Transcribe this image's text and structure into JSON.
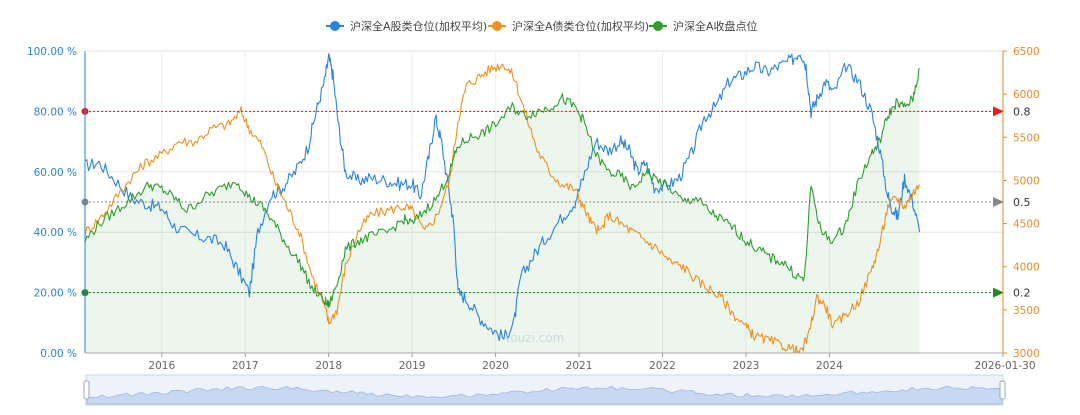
{
  "legend": [
    {
      "label": "沪深全A股类仓位(加权平均)",
      "color": "#2b83e0"
    },
    {
      "label": "沪深全A债类仓位(加权平均)",
      "color": "#f0901e"
    },
    {
      "label": "沪深全A收盘点位",
      "color": "#2e9e2e"
    }
  ],
  "watermark": "touzi.com",
  "chart_data": {
    "type": "line",
    "title": "",
    "xlabel": "",
    "ylabel": "",
    "x_ticks": [
      "2016",
      "2017",
      "2018",
      "2019",
      "2020",
      "2021",
      "2022",
      "2023",
      "2024",
      "2026-01-30"
    ],
    "x_range": [
      "2015-01",
      "2026-01-30"
    ],
    "y_left": {
      "ticks": [
        "0.00 %",
        "20.00 %",
        "40.00 %",
        "60.00 %",
        "80.00 %",
        "100.00 %"
      ],
      "range": [
        0,
        100
      ],
      "color": "#2b83d8"
    },
    "y_right": {
      "ticks": [
        "3000",
        "3500",
        "4000",
        "4500",
        "5000",
        "5500",
        "6000",
        "6500"
      ],
      "range": [
        3000,
        6500
      ],
      "color": "#e98a26"
    },
    "reference_lines": [
      {
        "value": 0.8,
        "label": "0.8",
        "color": "#e02020"
      },
      {
        "value": 0.5,
        "label": "0.5",
        "color": "#888888"
      },
      {
        "value": 0.2,
        "label": "0.2",
        "color": "#1f8a1f"
      }
    ],
    "series": [
      {
        "name": "沪深全A股类仓位(加权平均)",
        "color": "#2b83e0",
        "axis": "left",
        "points": [
          [
            2015.08,
            62
          ],
          [
            2015.25,
            63
          ],
          [
            2015.45,
            57
          ],
          [
            2015.65,
            51
          ],
          [
            2015.85,
            49
          ],
          [
            2016.0,
            48
          ],
          [
            2016.15,
            42
          ],
          [
            2016.35,
            39
          ],
          [
            2016.55,
            38
          ],
          [
            2016.75,
            36
          ],
          [
            2016.9,
            28
          ],
          [
            2017.05,
            20
          ],
          [
            2017.15,
            40
          ],
          [
            2017.3,
            52
          ],
          [
            2017.45,
            55
          ],
          [
            2017.6,
            60
          ],
          [
            2017.75,
            68
          ],
          [
            2017.85,
            80
          ],
          [
            2017.95,
            90
          ],
          [
            2018.0,
            98
          ],
          [
            2018.05,
            92
          ],
          [
            2018.12,
            75
          ],
          [
            2018.2,
            60
          ],
          [
            2018.35,
            57
          ],
          [
            2018.5,
            58
          ],
          [
            2018.7,
            57
          ],
          [
            2018.85,
            56
          ],
          [
            2019.0,
            56
          ],
          [
            2019.1,
            52
          ],
          [
            2019.2,
            65
          ],
          [
            2019.28,
            78
          ],
          [
            2019.35,
            70
          ],
          [
            2019.45,
            52
          ],
          [
            2019.5,
            42
          ],
          [
            2019.55,
            20
          ],
          [
            2019.65,
            18
          ],
          [
            2019.8,
            12
          ],
          [
            2019.95,
            8
          ],
          [
            2020.1,
            5
          ],
          [
            2020.22,
            10
          ],
          [
            2020.3,
            25
          ],
          [
            2020.45,
            32
          ],
          [
            2020.6,
            38
          ],
          [
            2020.8,
            45
          ],
          [
            2020.95,
            50
          ],
          [
            2021.05,
            58
          ],
          [
            2021.2,
            70
          ],
          [
            2021.35,
            67
          ],
          [
            2021.5,
            70
          ],
          [
            2021.6,
            67
          ],
          [
            2021.7,
            60
          ],
          [
            2021.8,
            63
          ],
          [
            2021.9,
            55
          ],
          [
            2022.05,
            55
          ],
          [
            2022.2,
            58
          ],
          [
            2022.35,
            66
          ],
          [
            2022.5,
            78
          ],
          [
            2022.65,
            82
          ],
          [
            2022.8,
            90
          ],
          [
            2022.95,
            92
          ],
          [
            2023.1,
            95
          ],
          [
            2023.25,
            93
          ],
          [
            2023.4,
            95
          ],
          [
            2023.55,
            97
          ],
          [
            2023.65,
            100
          ],
          [
            2023.72,
            95
          ],
          [
            2023.78,
            80
          ],
          [
            2023.85,
            84
          ],
          [
            2023.95,
            90
          ],
          [
            2024.05,
            86
          ],
          [
            2024.2,
            95
          ],
          [
            2024.35,
            90
          ],
          [
            2024.5,
            80
          ],
          [
            2024.6,
            68
          ],
          [
            2024.7,
            52
          ],
          [
            2024.75,
            48
          ],
          [
            2024.82,
            45
          ],
          [
            2024.9,
            58
          ],
          [
            2025.0,
            50
          ],
          [
            2025.08,
            40
          ]
        ]
      },
      {
        "name": "沪深全A债类仓位(加权平均)",
        "color": "#f0901e",
        "axis": "right",
        "points": [
          [
            2015.08,
            4400
          ],
          [
            2015.25,
            4550
          ],
          [
            2015.45,
            4800
          ],
          [
            2015.65,
            5050
          ],
          [
            2015.8,
            5200
          ],
          [
            2016.0,
            5300
          ],
          [
            2016.2,
            5450
          ],
          [
            2016.4,
            5450
          ],
          [
            2016.6,
            5600
          ],
          [
            2016.8,
            5650
          ],
          [
            2016.95,
            5800
          ],
          [
            2017.05,
            5600
          ],
          [
            2017.2,
            5400
          ],
          [
            2017.35,
            5000
          ],
          [
            2017.5,
            4700
          ],
          [
            2017.65,
            4400
          ],
          [
            2017.8,
            3900
          ],
          [
            2017.95,
            3550
          ],
          [
            2018.0,
            3350
          ],
          [
            2018.1,
            3500
          ],
          [
            2018.2,
            4000
          ],
          [
            2018.35,
            4400
          ],
          [
            2018.5,
            4600
          ],
          [
            2018.7,
            4650
          ],
          [
            2018.9,
            4700
          ],
          [
            2019.0,
            4650
          ],
          [
            2019.15,
            4400
          ],
          [
            2019.3,
            4600
          ],
          [
            2019.45,
            5000
          ],
          [
            2019.55,
            5700
          ],
          [
            2019.65,
            6100
          ],
          [
            2019.8,
            6200
          ],
          [
            2019.95,
            6300
          ],
          [
            2020.1,
            6350
          ],
          [
            2020.22,
            6200
          ],
          [
            2020.35,
            5800
          ],
          [
            2020.5,
            5350
          ],
          [
            2020.65,
            5100
          ],
          [
            2020.8,
            4950
          ],
          [
            2020.95,
            4900
          ],
          [
            2021.05,
            4700
          ],
          [
            2021.15,
            4500
          ],
          [
            2021.25,
            4400
          ],
          [
            2021.35,
            4600
          ],
          [
            2021.5,
            4500
          ],
          [
            2021.65,
            4400
          ],
          [
            2021.8,
            4300
          ],
          [
            2021.95,
            4200
          ],
          [
            2022.1,
            4050
          ],
          [
            2022.25,
            4000
          ],
          [
            2022.4,
            3850
          ],
          [
            2022.55,
            3750
          ],
          [
            2022.7,
            3650
          ],
          [
            2022.85,
            3450
          ],
          [
            2023.0,
            3300
          ],
          [
            2023.1,
            3200
          ],
          [
            2023.25,
            3150
          ],
          [
            2023.4,
            3100
          ],
          [
            2023.55,
            3050
          ],
          [
            2023.65,
            3000
          ],
          [
            2023.75,
            3200
          ],
          [
            2023.85,
            3650
          ],
          [
            2023.95,
            3550
          ],
          [
            2024.05,
            3300
          ],
          [
            2024.2,
            3450
          ],
          [
            2024.35,
            3600
          ],
          [
            2024.5,
            3950
          ],
          [
            2024.6,
            4250
          ],
          [
            2024.7,
            4700
          ],
          [
            2024.8,
            4800
          ],
          [
            2024.9,
            4700
          ],
          [
            2025.0,
            4850
          ],
          [
            2025.08,
            4950
          ]
        ]
      },
      {
        "name": "沪深全A收盘点位",
        "color": "#2e9e2e",
        "axis": "right",
        "points": [
          [
            2015.08,
            4300
          ],
          [
            2015.25,
            4500
          ],
          [
            2015.45,
            4650
          ],
          [
            2015.65,
            4800
          ],
          [
            2015.85,
            4950
          ],
          [
            2016.0,
            4900
          ],
          [
            2016.15,
            4800
          ],
          [
            2016.3,
            4650
          ],
          [
            2016.5,
            4800
          ],
          [
            2016.7,
            4900
          ],
          [
            2016.9,
            5000
          ],
          [
            2017.05,
            4800
          ],
          [
            2017.2,
            4700
          ],
          [
            2017.35,
            4500
          ],
          [
            2017.5,
            4250
          ],
          [
            2017.65,
            4050
          ],
          [
            2017.8,
            3750
          ],
          [
            2017.95,
            3600
          ],
          [
            2018.0,
            3550
          ],
          [
            2018.1,
            3800
          ],
          [
            2018.2,
            4200
          ],
          [
            2018.35,
            4300
          ],
          [
            2018.5,
            4350
          ],
          [
            2018.7,
            4400
          ],
          [
            2018.9,
            4550
          ],
          [
            2019.0,
            4500
          ],
          [
            2019.15,
            4650
          ],
          [
            2019.3,
            4800
          ],
          [
            2019.45,
            5100
          ],
          [
            2019.55,
            5400
          ],
          [
            2019.7,
            5500
          ],
          [
            2019.85,
            5550
          ],
          [
            2020.0,
            5650
          ],
          [
            2020.2,
            5850
          ],
          [
            2020.35,
            5750
          ],
          [
            2020.5,
            5800
          ],
          [
            2020.65,
            5850
          ],
          [
            2020.8,
            5950
          ],
          [
            2020.95,
            5850
          ],
          [
            2021.05,
            5700
          ],
          [
            2021.2,
            5300
          ],
          [
            2021.35,
            5100
          ],
          [
            2021.5,
            5050
          ],
          [
            2021.65,
            4900
          ],
          [
            2021.8,
            5100
          ],
          [
            2021.95,
            5000
          ],
          [
            2022.1,
            4900
          ],
          [
            2022.25,
            4750
          ],
          [
            2022.4,
            4800
          ],
          [
            2022.55,
            4650
          ],
          [
            2022.7,
            4550
          ],
          [
            2022.85,
            4450
          ],
          [
            2023.0,
            4300
          ],
          [
            2023.15,
            4200
          ],
          [
            2023.3,
            4100
          ],
          [
            2023.45,
            4050
          ],
          [
            2023.6,
            3900
          ],
          [
            2023.7,
            3850
          ],
          [
            2023.78,
            4950
          ],
          [
            2023.9,
            4400
          ],
          [
            2024.05,
            4300
          ],
          [
            2024.2,
            4500
          ],
          [
            2024.35,
            5000
          ],
          [
            2024.5,
            5300
          ],
          [
            2024.6,
            5450
          ],
          [
            2024.7,
            5750
          ],
          [
            2024.8,
            5900
          ],
          [
            2024.9,
            5850
          ],
          [
            2025.0,
            5950
          ],
          [
            2025.08,
            6300
          ]
        ]
      }
    ]
  }
}
